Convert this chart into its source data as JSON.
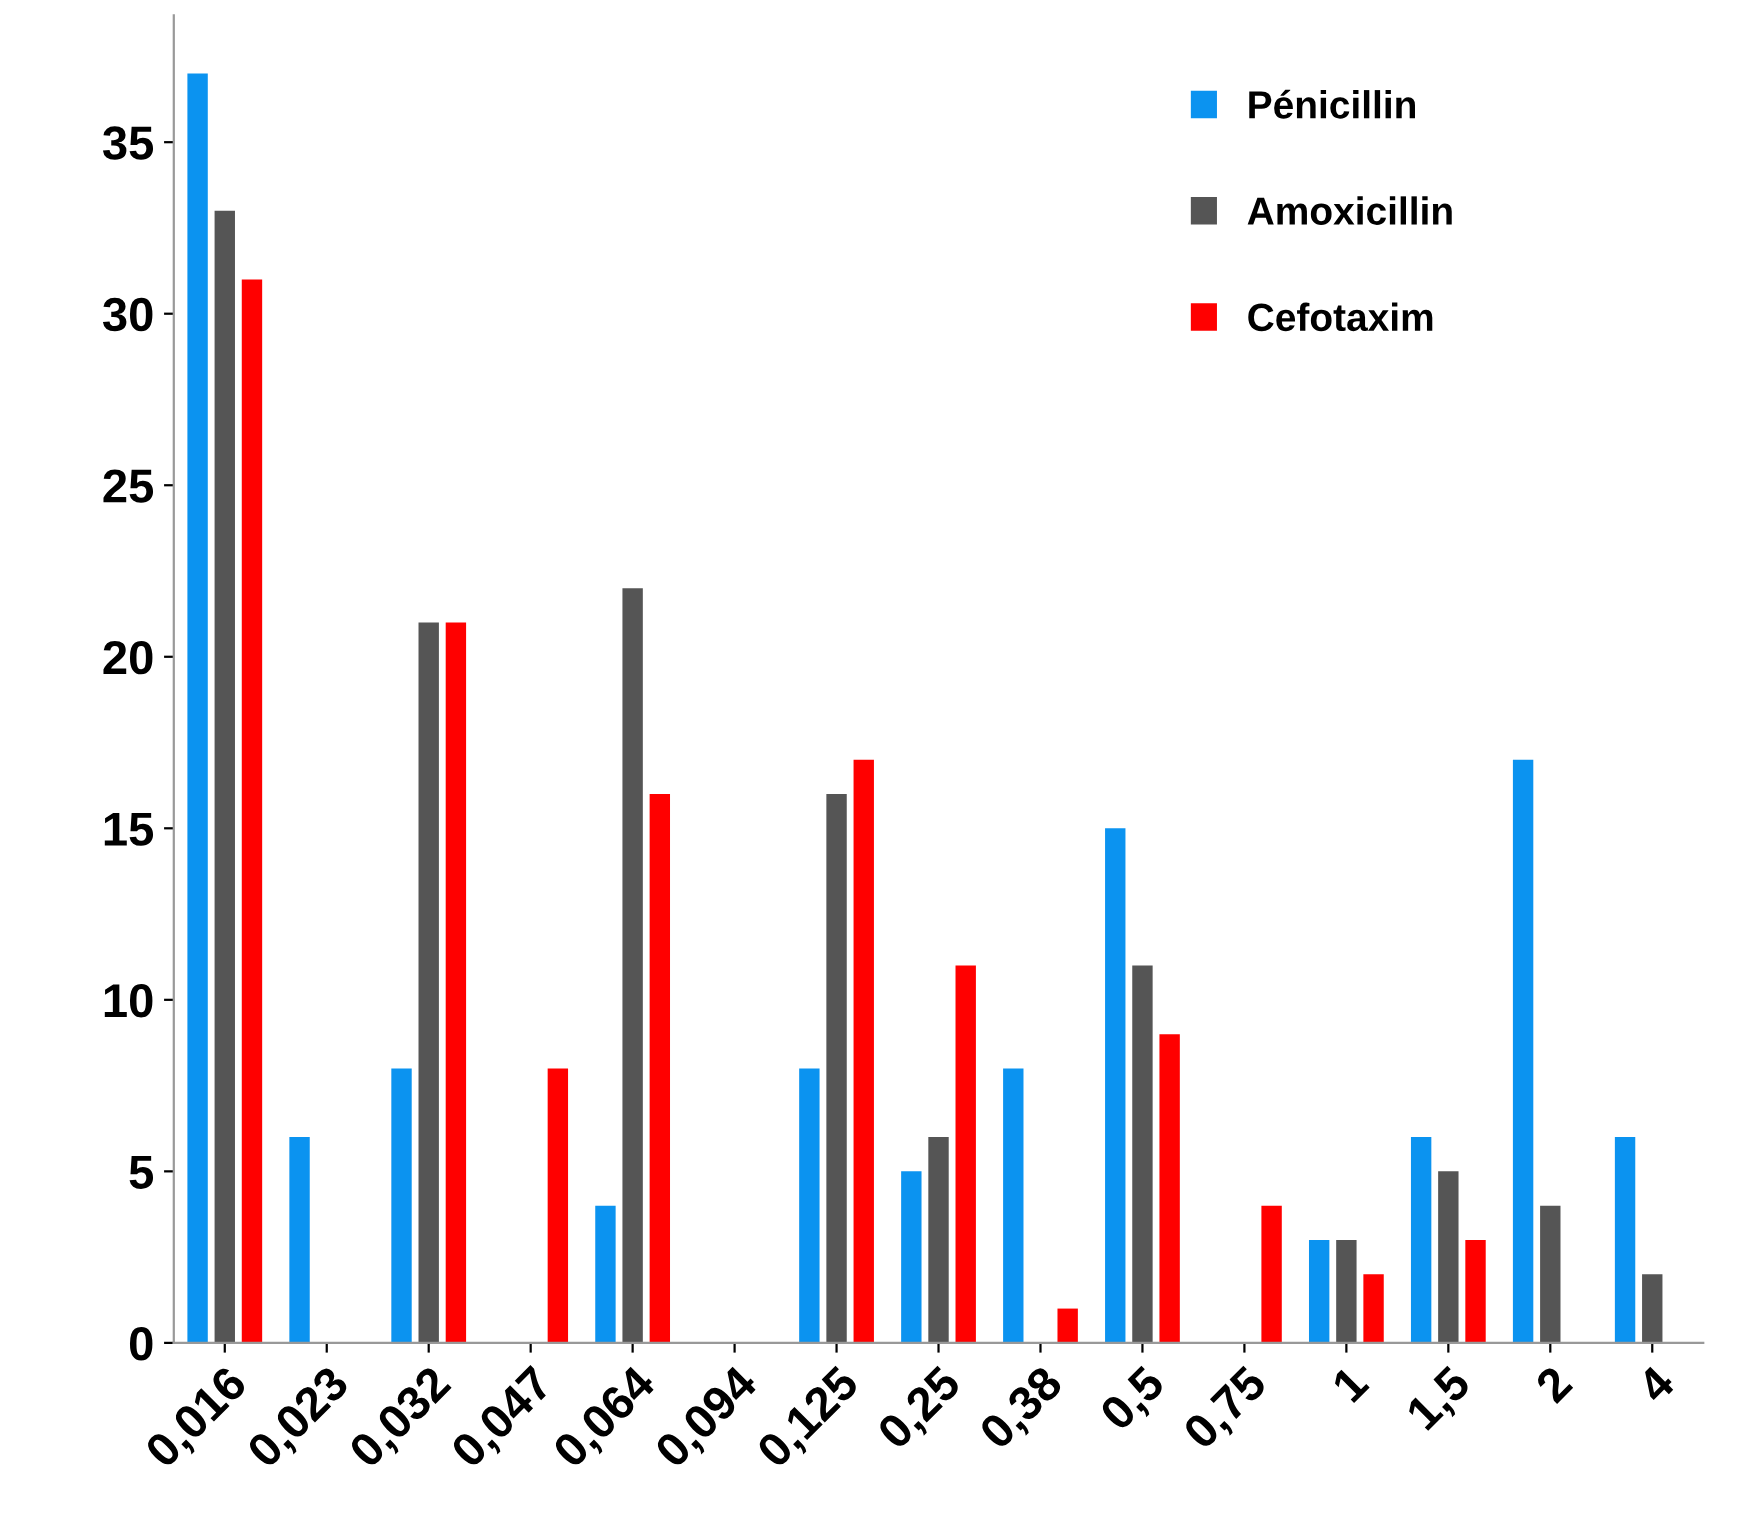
{
  "chart_data": {
    "type": "bar",
    "categories": [
      "0,016",
      "0,023",
      "0,032",
      "0,047",
      "0,064",
      "0,094",
      "0,125",
      "0,25",
      "0,38",
      "0,5",
      "0,75",
      "1",
      "1,5",
      "2",
      "4"
    ],
    "series": [
      {
        "name": "Pénicillin",
        "color": "#0b93f0",
        "values": [
          37,
          6,
          8,
          0,
          4,
          0,
          8,
          5,
          8,
          15,
          0,
          3,
          6,
          17,
          6
        ]
      },
      {
        "name": "Amoxicillin",
        "color": "#555555",
        "values": [
          33,
          0,
          21,
          0,
          22,
          0,
          16,
          6,
          0,
          11,
          0,
          3,
          5,
          4,
          2
        ]
      },
      {
        "name": "Cefotaxim",
        "color": "#ff0000",
        "values": [
          31,
          0,
          21,
          8,
          16,
          0,
          17,
          11,
          1,
          9,
          4,
          2,
          3,
          0,
          0
        ]
      }
    ],
    "ylim": [
      0,
      38.7
    ],
    "yticks": [
      0,
      5,
      10,
      15,
      20,
      25,
      30,
      35
    ],
    "grid": false,
    "legend": "top right"
  }
}
